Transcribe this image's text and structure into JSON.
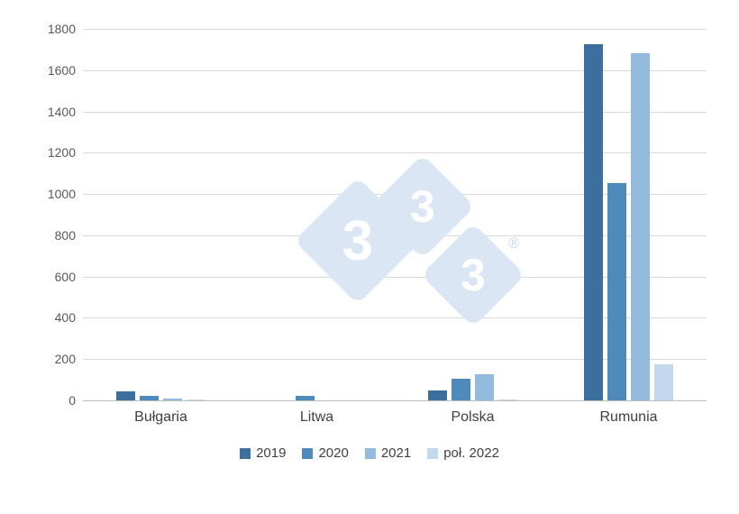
{
  "chart_data": {
    "type": "bar",
    "categories": [
      "Bułgaria",
      "Litwa",
      "Polska",
      "Rumunia"
    ],
    "series": [
      {
        "name": "2019",
        "color": "#3C6E9E",
        "values": [
          45,
          0,
          50,
          1725
        ]
      },
      {
        "name": "2020",
        "color": "#4E8ABC",
        "values": [
          20,
          20,
          105,
          1055
        ]
      },
      {
        "name": "2021",
        "color": "#94BBDD",
        "values": [
          10,
          0,
          125,
          1680
        ]
      },
      {
        "name": "poł. 2022",
        "color": "#C3D8EC",
        "values": [
          3,
          0,
          5,
          175
        ]
      }
    ],
    "title": "",
    "xlabel": "",
    "ylabel": "",
    "ylim": [
      0,
      1800
    ],
    "ytick_step": 200,
    "grid": true,
    "legend_position": "bottom"
  },
  "watermark": {
    "glyph": "3",
    "registered": "®"
  },
  "colors": {
    "gridline": "#d9d9d9",
    "axis_line": "#bfbfbf",
    "tick_text": "#595959",
    "watermark_fill": "#dae6f4"
  }
}
